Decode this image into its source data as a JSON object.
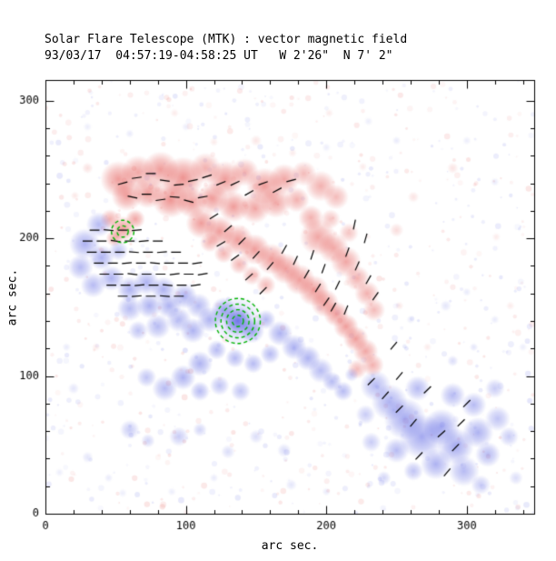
{
  "chart_data": {
    "type": "heatmap",
    "title": "Solar Flare Telescope (MTK) : vector magnetic field",
    "subtitle": "93/03/17  04:57:19-04:58:25 UT   W 2'26\"  N 7' 2\"",
    "xlabel": "arc sec.",
    "ylabel": "arc sec.",
    "xlim": [
      0,
      348
    ],
    "ylim": [
      0,
      315
    ],
    "xticks": [
      0,
      100,
      200,
      300
    ],
    "yticks": [
      0,
      100,
      200,
      300
    ],
    "minor_tick_step": 20,
    "colors": {
      "positive": "#e03c38",
      "negative": "#4b55e1",
      "contour": "#00b300",
      "vector": "#000000",
      "axis": "#000000",
      "background": "#ffffff"
    },
    "positive_blobs": [
      [
        52,
        243,
        13,
        0.5
      ],
      [
        66,
        248,
        12,
        0.45
      ],
      [
        82,
        250,
        13,
        0.5
      ],
      [
        98,
        244,
        15,
        0.55
      ],
      [
        114,
        251,
        11,
        0.4
      ],
      [
        128,
        243,
        13,
        0.5
      ],
      [
        142,
        248,
        10,
        0.4
      ],
      [
        156,
        238,
        13,
        0.5
      ],
      [
        170,
        243,
        11,
        0.45
      ],
      [
        184,
        247,
        9,
        0.35
      ],
      [
        196,
        238,
        11,
        0.4
      ],
      [
        207,
        230,
        9,
        0.35
      ],
      [
        58,
        231,
        11,
        0.5
      ],
      [
        73,
        233,
        11,
        0.5
      ],
      [
        89,
        228,
        13,
        0.55
      ],
      [
        104,
        226,
        11,
        0.5
      ],
      [
        119,
        229,
        11,
        0.5
      ],
      [
        134,
        223,
        11,
        0.5
      ],
      [
        149,
        222,
        11,
        0.45
      ],
      [
        164,
        226,
        11,
        0.45
      ],
      [
        179,
        228,
        9,
        0.4
      ],
      [
        111,
        211,
        11,
        0.5
      ],
      [
        124,
        205,
        11,
        0.5
      ],
      [
        137,
        199,
        11,
        0.5
      ],
      [
        149,
        192,
        11,
        0.5
      ],
      [
        161,
        185,
        11,
        0.5
      ],
      [
        171,
        178,
        11,
        0.5
      ],
      [
        181,
        170,
        11,
        0.5
      ],
      [
        191,
        162,
        11,
        0.5
      ],
      [
        199,
        153,
        10,
        0.5
      ],
      [
        207,
        145,
        9,
        0.5
      ],
      [
        214,
        136,
        9,
        0.5
      ],
      [
        221,
        127,
        9,
        0.5
      ],
      [
        228,
        118,
        9,
        0.45
      ],
      [
        233,
        108,
        8,
        0.4
      ],
      [
        222,
        105,
        7,
        0.35
      ],
      [
        194,
        201,
        13,
        0.45
      ],
      [
        205,
        193,
        11,
        0.45
      ],
      [
        214,
        183,
        11,
        0.45
      ],
      [
        222,
        171,
        9,
        0.4
      ],
      [
        229,
        160,
        9,
        0.4
      ],
      [
        234,
        148,
        8,
        0.35
      ],
      [
        189,
        215,
        9,
        0.4
      ],
      [
        203,
        214,
        7,
        0.3
      ],
      [
        216,
        204,
        7,
        0.3
      ],
      [
        55,
        207,
        9,
        0.5
      ],
      [
        46,
        214,
        7,
        0.4
      ],
      [
        64,
        214,
        7,
        0.45
      ],
      [
        49,
        200,
        6,
        0.4
      ],
      [
        157,
        166,
        7,
        0.35
      ],
      [
        147,
        173,
        7,
        0.35
      ],
      [
        138,
        181,
        7,
        0.38
      ],
      [
        127,
        189,
        7,
        0.38
      ],
      [
        117,
        197,
        7,
        0.38
      ],
      [
        250,
        206,
        5,
        0.18
      ],
      [
        262,
        230,
        4,
        0.14
      ],
      [
        290,
        251,
        4,
        0.14
      ],
      [
        30,
        251,
        4,
        0.16
      ],
      [
        21,
        231,
        3,
        0.12
      ],
      [
        150,
        271,
        4,
        0.13
      ],
      [
        120,
        270,
        3,
        0.1
      ],
      [
        252,
        151,
        3,
        0.12
      ],
      [
        272,
        121,
        3,
        0.1
      ],
      [
        36,
        121,
        3,
        0.1
      ],
      [
        92,
        291,
        3,
        0.1
      ],
      [
        202,
        291,
        3,
        0.1
      ],
      [
        321,
        201,
        3,
        0.1
      ],
      [
        331,
        151,
        3,
        0.1
      ],
      [
        176,
        262,
        3,
        0.1
      ],
      [
        226,
        252,
        3,
        0.1
      ]
    ],
    "negative_blobs": [
      [
        28,
        196,
        11,
        0.45
      ],
      [
        38,
        210,
        9,
        0.4
      ],
      [
        25,
        179,
        9,
        0.4
      ],
      [
        40,
        186,
        9,
        0.45
      ],
      [
        52,
        191,
        7,
        0.35
      ],
      [
        34,
        166,
        9,
        0.4
      ],
      [
        47,
        171,
        9,
        0.45
      ],
      [
        60,
        163,
        9,
        0.45
      ],
      [
        72,
        168,
        9,
        0.45
      ],
      [
        84,
        163,
        9,
        0.45
      ],
      [
        60,
        149,
        9,
        0.4
      ],
      [
        74,
        151,
        9,
        0.45
      ],
      [
        88,
        151,
        9,
        0.45
      ],
      [
        99,
        158,
        9,
        0.45
      ],
      [
        109,
        151,
        9,
        0.4
      ],
      [
        95,
        141,
        9,
        0.4
      ],
      [
        80,
        136,
        9,
        0.4
      ],
      [
        66,
        133,
        7,
        0.35
      ],
      [
        105,
        133,
        9,
        0.45
      ],
      [
        117,
        141,
        9,
        0.45
      ],
      [
        127,
        148,
        9,
        0.5
      ],
      [
        137,
        140,
        10,
        0.7
      ],
      [
        137,
        140,
        18,
        0.3
      ],
      [
        147,
        133,
        9,
        0.5
      ],
      [
        157,
        141,
        7,
        0.4
      ],
      [
        167,
        131,
        9,
        0.45
      ],
      [
        177,
        121,
        9,
        0.45
      ],
      [
        187,
        113,
        9,
        0.45
      ],
      [
        196,
        104,
        9,
        0.4
      ],
      [
        160,
        116,
        7,
        0.4
      ],
      [
        148,
        109,
        7,
        0.4
      ],
      [
        135,
        113,
        7,
        0.4
      ],
      [
        122,
        119,
        7,
        0.4
      ],
      [
        110,
        109,
        9,
        0.45
      ],
      [
        98,
        99,
        9,
        0.45
      ],
      [
        85,
        91,
        9,
        0.4
      ],
      [
        72,
        99,
        7,
        0.35
      ],
      [
        110,
        89,
        7,
        0.4
      ],
      [
        124,
        93,
        7,
        0.35
      ],
      [
        139,
        89,
        7,
        0.35
      ],
      [
        60,
        61,
        7,
        0.3
      ],
      [
        73,
        53,
        5,
        0.25
      ],
      [
        95,
        56,
        7,
        0.3
      ],
      [
        110,
        61,
        5,
        0.25
      ],
      [
        150,
        56,
        5,
        0.2
      ],
      [
        170,
        46,
        5,
        0.2
      ],
      [
        130,
        45,
        5,
        0.2
      ],
      [
        204,
        96,
        7,
        0.4
      ],
      [
        212,
        89,
        7,
        0.4
      ],
      [
        218,
        101,
        5,
        0.3
      ],
      [
        235,
        93,
        11,
        0.4
      ],
      [
        245,
        81,
        13,
        0.45
      ],
      [
        256,
        69,
        15,
        0.5
      ],
      [
        268,
        56,
        16,
        0.5
      ],
      [
        282,
        63,
        13,
        0.5
      ],
      [
        292,
        49,
        13,
        0.5
      ],
      [
        278,
        36,
        11,
        0.45
      ],
      [
        298,
        31,
        11,
        0.4
      ],
      [
        308,
        59,
        11,
        0.45
      ],
      [
        315,
        43,
        9,
        0.4
      ],
      [
        322,
        69,
        9,
        0.35
      ],
      [
        305,
        79,
        9,
        0.4
      ],
      [
        290,
        86,
        9,
        0.4
      ],
      [
        265,
        91,
        9,
        0.4
      ],
      [
        250,
        46,
        9,
        0.4
      ],
      [
        262,
        31,
        7,
        0.35
      ],
      [
        241,
        26,
        5,
        0.25
      ],
      [
        320,
        91,
        7,
        0.3
      ],
      [
        330,
        56,
        7,
        0.3
      ],
      [
        310,
        21,
        7,
        0.3
      ],
      [
        335,
        26,
        5,
        0.2
      ],
      [
        228,
        72,
        7,
        0.3
      ],
      [
        232,
        52,
        7,
        0.3
      ],
      [
        285,
        151,
        4,
        0.15
      ],
      [
        300,
        161,
        3,
        0.12
      ],
      [
        320,
        141,
        3,
        0.12
      ],
      [
        340,
        121,
        3,
        0.1
      ],
      [
        260,
        141,
        3,
        0.12
      ],
      [
        290,
        111,
        4,
        0.2
      ],
      [
        305,
        121,
        3,
        0.15
      ],
      [
        60,
        276,
        3,
        0.12
      ],
      [
        100,
        281,
        3,
        0.1
      ],
      [
        250,
        271,
        3,
        0.12
      ],
      [
        300,
        271,
        3,
        0.1
      ],
      [
        320,
        241,
        3,
        0.12
      ],
      [
        200,
        266,
        3,
        0.1
      ],
      [
        30,
        281,
        3,
        0.1
      ],
      [
        230,
        285,
        3,
        0.1
      ],
      [
        30,
        41,
        4,
        0.15
      ],
      [
        45,
        26,
        3,
        0.12
      ],
      [
        20,
        91,
        4,
        0.15
      ],
      [
        15,
        121,
        3,
        0.12
      ],
      [
        175,
        21,
        4,
        0.15
      ],
      [
        200,
        16,
        3,
        0.12
      ],
      [
        120,
        26,
        3,
        0.12
      ],
      [
        90,
        16,
        3,
        0.1
      ],
      [
        55,
        15,
        3,
        0.1
      ],
      [
        10,
        30,
        3,
        0.1
      ]
    ],
    "vectors": [
      [
        35,
        206,
        0
      ],
      [
        45,
        206,
        -5
      ],
      [
        55,
        206,
        0
      ],
      [
        65,
        206,
        5
      ],
      [
        30,
        198,
        0
      ],
      [
        40,
        198,
        0
      ],
      [
        50,
        198,
        -8
      ],
      [
        60,
        198,
        0
      ],
      [
        70,
        198,
        5
      ],
      [
        80,
        198,
        0
      ],
      [
        33,
        190,
        0
      ],
      [
        43,
        190,
        0
      ],
      [
        53,
        190,
        0
      ],
      [
        63,
        190,
        -5
      ],
      [
        73,
        190,
        0
      ],
      [
        83,
        190,
        5
      ],
      [
        93,
        190,
        0
      ],
      [
        38,
        182,
        0
      ],
      [
        48,
        182,
        0
      ],
      [
        58,
        182,
        5
      ],
      [
        68,
        182,
        0
      ],
      [
        78,
        182,
        -5
      ],
      [
        88,
        182,
        0
      ],
      [
        98,
        182,
        0
      ],
      [
        108,
        182,
        8
      ],
      [
        42,
        174,
        0
      ],
      [
        52,
        174,
        0
      ],
      [
        62,
        174,
        -6
      ],
      [
        72,
        174,
        0
      ],
      [
        82,
        174,
        0
      ],
      [
        92,
        174,
        6
      ],
      [
        102,
        174,
        0
      ],
      [
        112,
        174,
        10
      ],
      [
        47,
        166,
        0
      ],
      [
        57,
        166,
        0
      ],
      [
        67,
        166,
        5
      ],
      [
        77,
        166,
        0
      ],
      [
        87,
        166,
        -5
      ],
      [
        97,
        166,
        0
      ],
      [
        107,
        166,
        8
      ],
      [
        55,
        158,
        0
      ],
      [
        65,
        158,
        5
      ],
      [
        75,
        158,
        0
      ],
      [
        85,
        158,
        -5
      ],
      [
        95,
        158,
        0
      ],
      [
        55,
        240,
        15
      ],
      [
        65,
        244,
        8
      ],
      [
        75,
        247,
        0
      ],
      [
        85,
        242,
        -8
      ],
      [
        95,
        239,
        5
      ],
      [
        105,
        242,
        12
      ],
      [
        115,
        245,
        18
      ],
      [
        125,
        240,
        22
      ],
      [
        62,
        230,
        -12
      ],
      [
        72,
        232,
        0
      ],
      [
        82,
        228,
        8
      ],
      [
        92,
        230,
        -5
      ],
      [
        102,
        227,
        -15
      ],
      [
        112,
        230,
        10
      ],
      [
        135,
        240,
        25
      ],
      [
        145,
        233,
        30
      ],
      [
        155,
        240,
        20
      ],
      [
        165,
        235,
        28
      ],
      [
        175,
        242,
        15
      ],
      [
        120,
        216,
        32
      ],
      [
        130,
        207,
        40
      ],
      [
        140,
        198,
        45
      ],
      [
        150,
        188,
        48
      ],
      [
        160,
        180,
        50
      ],
      [
        145,
        172,
        42
      ],
      [
        155,
        162,
        45
      ],
      [
        135,
        186,
        36
      ],
      [
        125,
        196,
        30
      ],
      [
        170,
        192,
        60
      ],
      [
        178,
        184,
        65
      ],
      [
        186,
        174,
        60
      ],
      [
        194,
        164,
        58
      ],
      [
        200,
        154,
        55
      ],
      [
        190,
        188,
        72
      ],
      [
        198,
        178,
        70
      ],
      [
        208,
        166,
        64
      ],
      [
        205,
        150,
        60
      ],
      [
        214,
        148,
        68
      ],
      [
        220,
        210,
        78
      ],
      [
        228,
        200,
        74
      ],
      [
        215,
        190,
        70
      ],
      [
        222,
        180,
        66
      ],
      [
        230,
        170,
        60
      ],
      [
        235,
        158,
        55
      ],
      [
        232,
        96,
        45
      ],
      [
        242,
        86,
        48
      ],
      [
        252,
        76,
        45
      ],
      [
        262,
        66,
        50
      ],
      [
        272,
        90,
        44
      ],
      [
        282,
        58,
        42
      ],
      [
        292,
        48,
        46
      ],
      [
        252,
        100,
        50
      ],
      [
        300,
        80,
        45
      ],
      [
        266,
        42,
        46
      ],
      [
        286,
        30,
        50
      ],
      [
        296,
        66,
        44
      ],
      [
        248,
        122,
        50
      ]
    ],
    "contours": [
      {
        "x": 137,
        "y": 140,
        "radii": [
          4,
          8,
          12,
          16
        ]
      },
      {
        "x": 55,
        "y": 205,
        "radii": [
          4,
          8
        ]
      }
    ],
    "vector_length_arcsec": 7
  }
}
